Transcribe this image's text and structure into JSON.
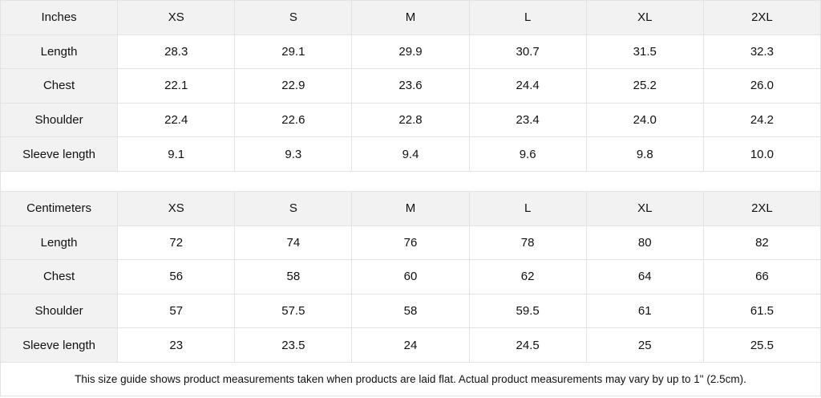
{
  "tables": [
    {
      "unit": "Inches",
      "sizes": [
        "XS",
        "S",
        "M",
        "L",
        "XL",
        "2XL"
      ],
      "rows": [
        {
          "label": "Length",
          "values": [
            "28.3",
            "29.1",
            "29.9",
            "30.7",
            "31.5",
            "32.3"
          ]
        },
        {
          "label": "Chest",
          "values": [
            "22.1",
            "22.9",
            "23.6",
            "24.4",
            "25.2",
            "26.0"
          ]
        },
        {
          "label": "Shoulder",
          "values": [
            "22.4",
            "22.6",
            "22.8",
            "23.4",
            "24.0",
            "24.2"
          ]
        },
        {
          "label": "Sleeve length",
          "values": [
            "9.1",
            "9.3",
            "9.4",
            "9.6",
            "9.8",
            "10.0"
          ]
        }
      ]
    },
    {
      "unit": "Centimeters",
      "sizes": [
        "XS",
        "S",
        "M",
        "L",
        "XL",
        "2XL"
      ],
      "rows": [
        {
          "label": "Length",
          "values": [
            "72",
            "74",
            "76",
            "78",
            "80",
            "82"
          ]
        },
        {
          "label": "Chest",
          "values": [
            "56",
            "58",
            "60",
            "62",
            "64",
            "66"
          ]
        },
        {
          "label": "Shoulder",
          "values": [
            "57",
            "57.5",
            "58",
            "59.5",
            "61",
            "61.5"
          ]
        },
        {
          "label": "Sleeve length",
          "values": [
            "23",
            "23.5",
            "24",
            "24.5",
            "25",
            "25.5"
          ]
        }
      ]
    }
  ],
  "note": "This size guide shows product measurements taken when products are laid flat.  Actual product measurements may vary by up to 1\" (2.5cm).",
  "colors": {
    "header_bg": "#f2f2f2",
    "border": "#e3e3e3"
  }
}
